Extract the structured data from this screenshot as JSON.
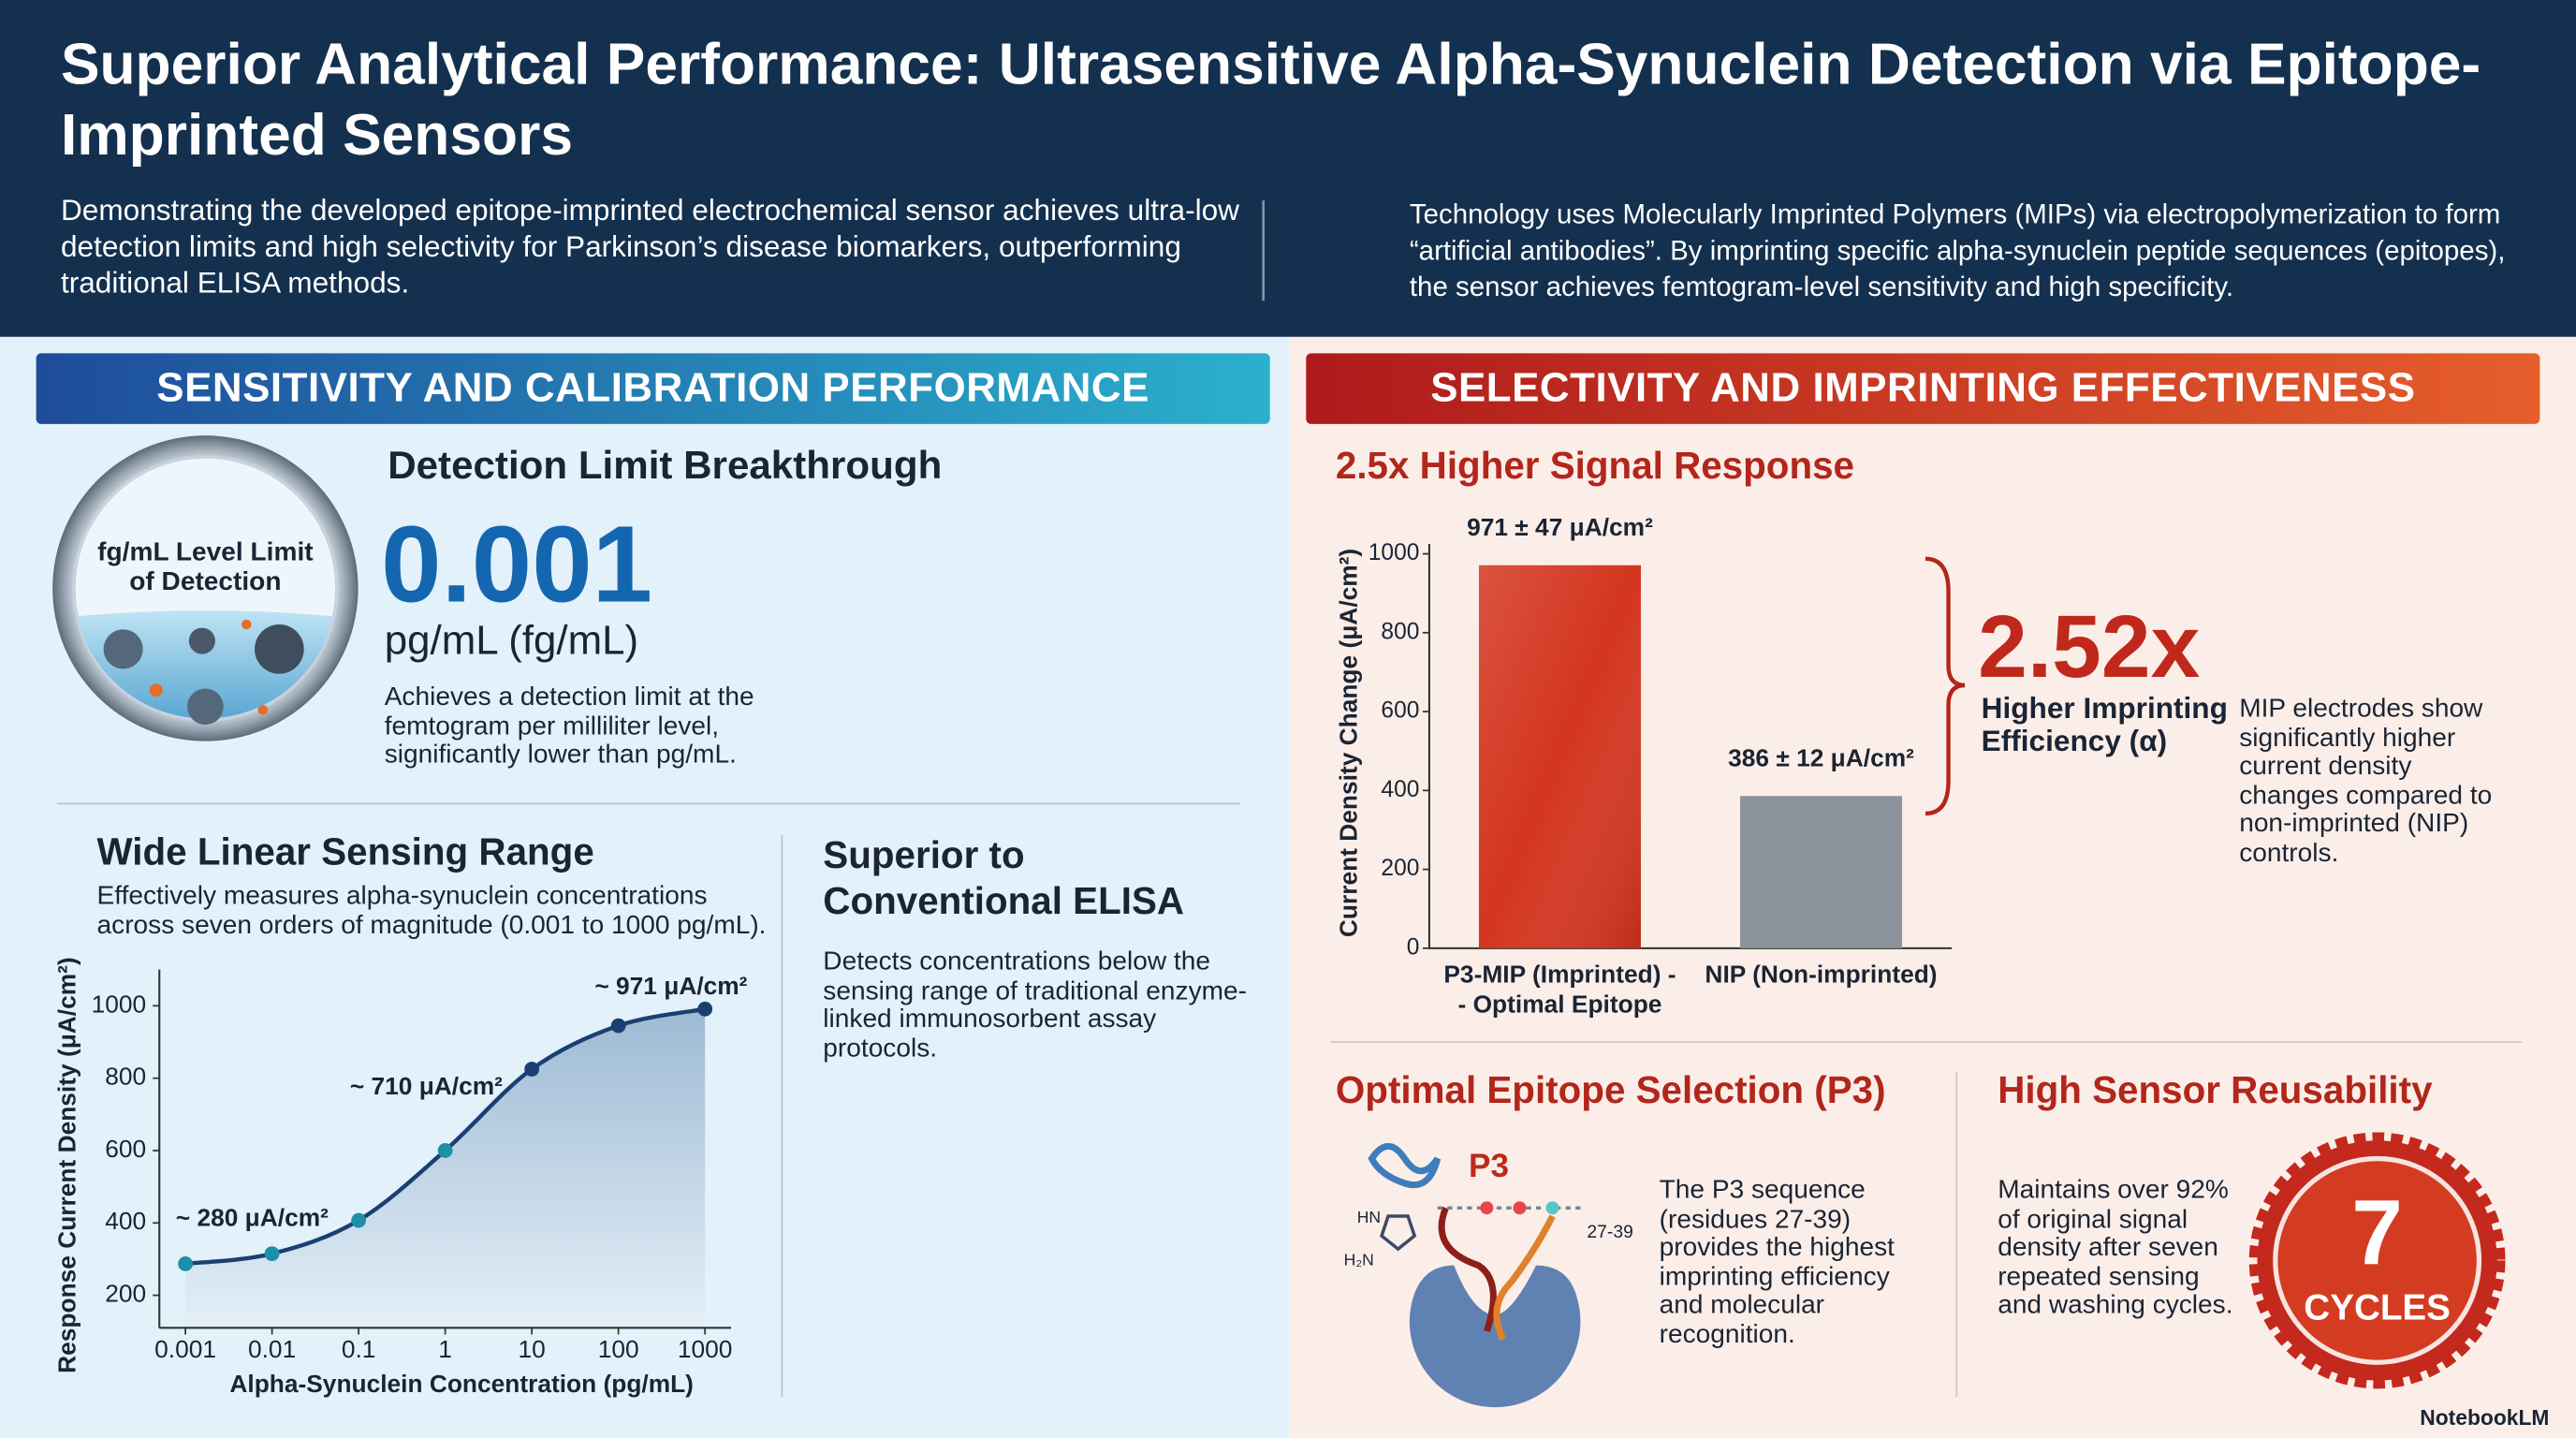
{
  "header": {
    "title": "Superior Analytical Performance: Ultrasensitive Alpha-Synuclein Detection via Epitope-Imprinted Sensors",
    "summary": "Demonstrating the developed epitope-imprinted electrochemical sensor achieves ultra-low detection limits and high selectivity for Parkinson’s disease biomarkers, outperforming traditional ELISA methods.",
    "technology": "Technology uses Molecularly Imprinted Polymers (MIPs) via electropolymerization to form “artificial antibodies”. By imprinting specific alpha-synuclein peptide sequences (epitopes), the sensor achieves femtogram-level sensitivity and high specificity."
  },
  "sensitivity": {
    "heading": "SENSITIVITY AND CALIBRATION PERFORMANCE",
    "detection_limit": {
      "badge": "fg/mL Level Limit of Detection",
      "title": "Detection Limit Breakthrough",
      "value": "0.001",
      "unit": "pg/mL (fg/mL)",
      "description": "Achieves a detection limit at the femtogram per milliliter level, significantly lower than pg/mL."
    },
    "linear_range": {
      "title": "Wide Linear Sensing Range",
      "description": "Effectively measures alpha-synuclein concentrations across seven orders of magnitude (0.001 to 1000 pg/mL)."
    },
    "elisa": {
      "title": "Superior to Conventional ELISA",
      "description": "Detects concentrations below the sensing range of traditional enzyme-linked immunosorbent assay protocols."
    }
  },
  "selectivity": {
    "heading": "SELECTIVITY AND IMPRINTING EFFECTIVENESS",
    "signal_title": "2.5x Higher Signal Response",
    "ratio": "2.52x",
    "ratio_label": "Higher Imprinting Efficiency (α)",
    "ratio_description": "MIP electrodes show significantly higher current density changes compared to non-imprinted (NIP) controls.",
    "epitope": {
      "title": "Optimal Epitope Selection (P3)",
      "label": "P3",
      "residues": "27-39",
      "groups": [
        "HN",
        "H₂N"
      ],
      "description": "The P3 sequence (residues 27-39) provides the highest imprinting efficiency and molecular recognition."
    },
    "reusability": {
      "title": "High Sensor Reusability",
      "description": "Maintains over 92% of original signal density after seven repeated sensing and washing cycles.",
      "count": "7",
      "unit": "CYCLES"
    }
  },
  "footer": "NotebookLM",
  "chart_data": [
    {
      "type": "line",
      "x": [
        0.001,
        0.01,
        0.1,
        1,
        10,
        100,
        1000
      ],
      "values": [
        287,
        315,
        407,
        600,
        825,
        945,
        991
      ],
      "color": "#1c3f72",
      "point_color": "#1d8fa6",
      "x_label": "Alpha-Synuclein Concentration (pg/mL)",
      "y_label": "Response Current Density (μA/cm²)",
      "xscale": "log",
      "xlim": [
        0.0005,
        2000
      ],
      "xticks": [
        0.001,
        0.01,
        0.1,
        1,
        10,
        100,
        1000
      ],
      "ylim": [
        110,
        1100
      ],
      "yticks": [
        200,
        400,
        600,
        800,
        1000
      ],
      "annotations": [
        "~ 280 μA/cm²",
        "~ 710 μA/cm²",
        "~ 971 μA/cm²"
      ]
    },
    {
      "type": "bar",
      "categories": [
        "P3-MIP (Imprinted) -- Optimal Epitope",
        "NIP (Non-imprinted)"
      ],
      "values": [
        971,
        386
      ],
      "value_labels": [
        "971 ± 47 μA/cm²",
        "386 ± 12 μA/cm²"
      ],
      "colors": [
        "#d3351f",
        "#8c939c"
      ],
      "y_label": "Current Density Change (μA/cm²)",
      "ylim": [
        0,
        1000
      ],
      "yticks": [
        0,
        200,
        400,
        600,
        800,
        1000
      ]
    }
  ]
}
